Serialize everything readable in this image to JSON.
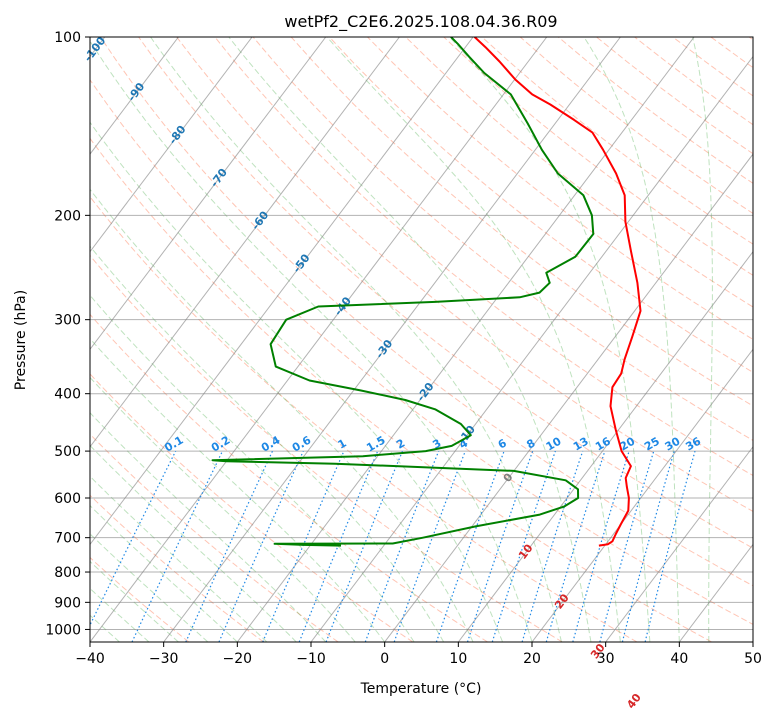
{
  "chart_data": {
    "type": "line",
    "subtype": "skew-t log-p diagram",
    "title": "wetPf2_C2E6.2025.108.04.36.R09",
    "xlabel": "Temperature (°C)",
    "ylabel": "Pressure (hPa)",
    "xlim": [
      -40,
      50
    ],
    "ylim": [
      1050,
      100
    ],
    "y_scale": "log",
    "x_ticks": [
      -40,
      -30,
      -20,
      -10,
      0,
      10,
      20,
      30,
      40,
      50
    ],
    "y_ticks": [
      100,
      200,
      300,
      400,
      500,
      600,
      700,
      800,
      900,
      1000
    ],
    "grid": true,
    "colors": {
      "temperature": "#ff0000",
      "dewpoint": "#008000",
      "dry_adiabat": "#ff8c69",
      "moist_adiabat": "#2ca02c",
      "mixing_ratio": "#1e88e5",
      "isotherm": "#808080",
      "isotherm_label_warm": "#d62728",
      "isotherm_label_cold": "#1f77b4",
      "isotherm_label_zero": "#7f7f7f",
      "mixing_ratio_label": "#1e88e5"
    },
    "series": [
      {
        "role": "temperature",
        "points": [
          {
            "p": 722,
            "t": 19.2
          },
          {
            "p": 718,
            "t": 20.3
          },
          {
            "p": 710,
            "t": 20.6
          },
          {
            "p": 690,
            "t": 20.3
          },
          {
            "p": 665,
            "t": 20.0
          },
          {
            "p": 630,
            "t": 19.6
          },
          {
            "p": 600,
            "t": 18.4
          },
          {
            "p": 575,
            "t": 17.0
          },
          {
            "p": 555,
            "t": 15.9
          },
          {
            "p": 530,
            "t": 15.4
          },
          {
            "p": 500,
            "t": 12.6
          },
          {
            "p": 460,
            "t": 9.6
          },
          {
            "p": 420,
            "t": 6.5
          },
          {
            "p": 390,
            "t": 4.8
          },
          {
            "p": 370,
            "t": 4.6
          },
          {
            "p": 350,
            "t": 3.6
          },
          {
            "p": 320,
            "t": 2.3
          },
          {
            "p": 290,
            "t": 0.8
          },
          {
            "p": 260,
            "t": -2.5
          },
          {
            "p": 230,
            "t": -6.6
          },
          {
            "p": 205,
            "t": -10.4
          },
          {
            "p": 185,
            "t": -13.2
          },
          {
            "p": 170,
            "t": -16.6
          },
          {
            "p": 155,
            "t": -20.8
          },
          {
            "p": 145,
            "t": -24.0
          },
          {
            "p": 138,
            "t": -27.8
          },
          {
            "p": 130,
            "t": -32.6
          },
          {
            "p": 125,
            "t": -36.1
          },
          {
            "p": 118,
            "t": -39.9
          },
          {
            "p": 110,
            "t": -43.9
          },
          {
            "p": 104,
            "t": -47.3
          },
          {
            "p": 100,
            "t": -49.8
          }
        ]
      },
      {
        "role": "dewpoint",
        "points": [
          {
            "p": 722,
            "t": -15.8
          },
          {
            "p": 720,
            "t": -21.0
          },
          {
            "p": 717,
            "t": -25.0
          },
          {
            "p": 716,
            "t": -9.0
          },
          {
            "p": 700,
            "t": -5.5
          },
          {
            "p": 670,
            "t": 0.5
          },
          {
            "p": 640,
            "t": 8.0
          },
          {
            "p": 620,
            "t": 10.5
          },
          {
            "p": 600,
            "t": 11.5
          },
          {
            "p": 580,
            "t": 10.6
          },
          {
            "p": 560,
            "t": 8.0
          },
          {
            "p": 540,
            "t": 0.0
          },
          {
            "p": 525,
            "t": -25.0
          },
          {
            "p": 520,
            "t": -40.0
          },
          {
            "p": 518,
            "t": -42.0
          },
          {
            "p": 510,
            "t": -22.0
          },
          {
            "p": 500,
            "t": -14.0
          },
          {
            "p": 490,
            "t": -11.0
          },
          {
            "p": 470,
            "t": -9.5
          },
          {
            "p": 450,
            "t": -12.0
          },
          {
            "p": 425,
            "t": -17.0
          },
          {
            "p": 410,
            "t": -22.0
          },
          {
            "p": 395,
            "t": -29.0
          },
          {
            "p": 380,
            "t": -37.0
          },
          {
            "p": 360,
            "t": -43.0
          },
          {
            "p": 330,
            "t": -46.0
          },
          {
            "p": 300,
            "t": -46.4
          },
          {
            "p": 285,
            "t": -43.4
          },
          {
            "p": 280,
            "t": -28.0
          },
          {
            "p": 275,
            "t": -17.0
          },
          {
            "p": 270,
            "t": -14.8
          },
          {
            "p": 260,
            "t": -14.4
          },
          {
            "p": 250,
            "t": -15.9
          },
          {
            "p": 235,
            "t": -13.6
          },
          {
            "p": 215,
            "t": -13.5
          },
          {
            "p": 200,
            "t": -15.6
          },
          {
            "p": 185,
            "t": -18.8
          },
          {
            "p": 170,
            "t": -24.5
          },
          {
            "p": 155,
            "t": -29.1
          },
          {
            "p": 140,
            "t": -33.7
          },
          {
            "p": 125,
            "t": -39.0
          },
          {
            "p": 115,
            "t": -44.8
          },
          {
            "p": 108,
            "t": -48.5
          },
          {
            "p": 103,
            "t": -51.2
          },
          {
            "p": 100,
            "t": -53.0
          }
        ]
      }
    ],
    "isotherm_labels": [
      "-100",
      "-90",
      "-80",
      "-70",
      "-60",
      "-50",
      "-40",
      "-30",
      "-20",
      "-10",
      "0",
      "10",
      "20",
      "30",
      "40"
    ],
    "mixing_ratio_labels": [
      "0.1",
      "0.2",
      "0.4",
      "0.6",
      "1",
      "1.5",
      "2",
      "3",
      "4",
      "6",
      "8",
      "10",
      "13",
      "16",
      "20",
      "25",
      "30",
      "36"
    ]
  }
}
